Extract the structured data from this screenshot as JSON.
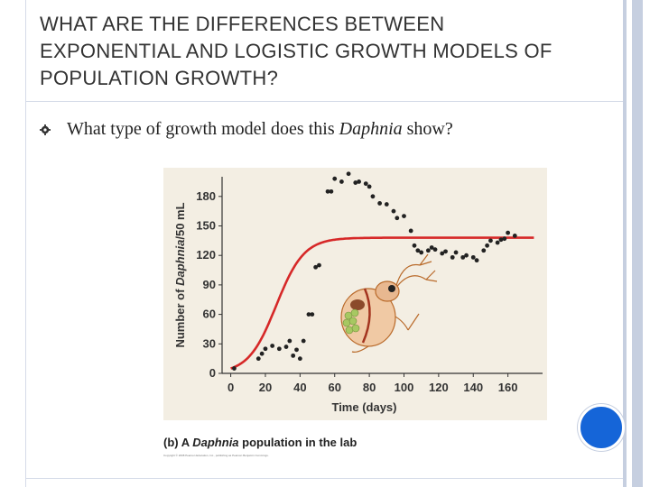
{
  "title": "WHAT ARE THE DIFFERENCES BETWEEN EXPONENTIAL AND LOGISTIC GROWTH MODELS OF POPULATION GROWTH?",
  "bullet": {
    "before": "What type of growth model does this ",
    "italic": "Daphnia",
    "after": " show?"
  },
  "caption": {
    "prefix": "(b) A ",
    "italic": "Daphnia",
    "suffix": " population in the lab"
  },
  "copyright": "Copyright © 2008 Pearson Education, Inc., publishing as Pearson Benjamin Cummings.",
  "colors": {
    "accent": "#1565d8",
    "border": "#c6cfe0",
    "plot_bg": "#f3eee3",
    "curve": "#d62828",
    "points": "#222222"
  },
  "chart_data": {
    "type": "scatter",
    "title": "A Daphnia population in the lab",
    "xlabel": "Time (days)",
    "ylabel_pre": "Number of ",
    "ylabel_italic": "Daphnia",
    "ylabel_post": "/50 mL",
    "xlim": [
      -5,
      180
    ],
    "ylim": [
      0,
      200
    ],
    "xticks": [
      0,
      20,
      40,
      60,
      80,
      100,
      120,
      140,
      160
    ],
    "yticks": [
      0,
      30,
      60,
      90,
      120,
      150,
      180
    ],
    "series": [
      {
        "name": "Observed population",
        "kind": "points",
        "points": [
          [
            2,
            5
          ],
          [
            16,
            15
          ],
          [
            18,
            20
          ],
          [
            20,
            25
          ],
          [
            24,
            28
          ],
          [
            28,
            25
          ],
          [
            32,
            27
          ],
          [
            34,
            33
          ],
          [
            36,
            18
          ],
          [
            38,
            24
          ],
          [
            40,
            15
          ],
          [
            42,
            33
          ],
          [
            45,
            60
          ],
          [
            47,
            60
          ],
          [
            49,
            108
          ],
          [
            51,
            110
          ],
          [
            56,
            185
          ],
          [
            58,
            185
          ],
          [
            60,
            198
          ],
          [
            64,
            195
          ],
          [
            68,
            203
          ],
          [
            72,
            194
          ],
          [
            74,
            195
          ],
          [
            78,
            193
          ],
          [
            80,
            190
          ],
          [
            82,
            180
          ],
          [
            86,
            173
          ],
          [
            90,
            172
          ],
          [
            94,
            165
          ],
          [
            96,
            158
          ],
          [
            100,
            160
          ],
          [
            104,
            145
          ],
          [
            106,
            130
          ],
          [
            108,
            125
          ],
          [
            110,
            123
          ],
          [
            114,
            125
          ],
          [
            116,
            128
          ],
          [
            118,
            126
          ],
          [
            122,
            122
          ],
          [
            124,
            124
          ],
          [
            128,
            118
          ],
          [
            130,
            123
          ],
          [
            134,
            118
          ],
          [
            136,
            120
          ],
          [
            140,
            118
          ],
          [
            142,
            115
          ],
          [
            146,
            125
          ],
          [
            148,
            130
          ],
          [
            150,
            135
          ],
          [
            154,
            133
          ],
          [
            156,
            136
          ],
          [
            158,
            137
          ],
          [
            160,
            143
          ],
          [
            164,
            140
          ]
        ]
      },
      {
        "name": "Logistic model",
        "kind": "curve",
        "K": 138,
        "N0": 5,
        "r": 0.125
      }
    ]
  }
}
